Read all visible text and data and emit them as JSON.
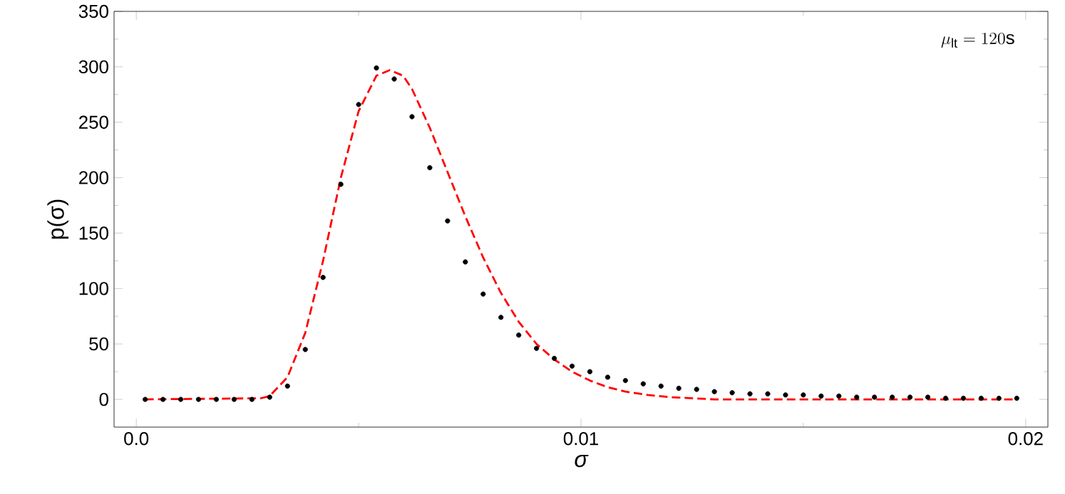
{
  "chart_data": {
    "type": "scatter",
    "xlabel": "σ",
    "ylabel": "p(σ)",
    "annotations": [
      "\\mu_{\\rm lt} = 120{\\rm s}"
    ],
    "xlim": [
      -0.0005,
      0.0205
    ],
    "ylim": [
      -25,
      350
    ],
    "xticks": [
      {
        "value": 0,
        "label": "0.0"
      },
      0.01,
      0.02
    ],
    "yticks": [
      0,
      50,
      100,
      150,
      200,
      250,
      300,
      350
    ],
    "series": [
      {
        "color": "#000000",
        "marker": "circle",
        "x": [
          0.0002,
          0.0006,
          0.001,
          0.0014,
          0.0018,
          0.0022,
          0.0026,
          0.003,
          0.0034,
          0.0038,
          0.0042,
          0.0046,
          0.005,
          0.0054,
          0.0058,
          0.0062,
          0.0066,
          0.007,
          0.0074,
          0.0078,
          0.0082,
          0.0086,
          0.009,
          0.0094,
          0.0098,
          0.0102,
          0.0106,
          0.011,
          0.0114,
          0.0118,
          0.0122,
          0.0126,
          0.013,
          0.0134,
          0.0138,
          0.0142,
          0.0146,
          0.015,
          0.0154,
          0.0158,
          0.0162,
          0.0166,
          0.017,
          0.0174,
          0.0178,
          0.0182,
          0.0186,
          0.019,
          0.0194,
          0.0198
        ],
        "values": [
          0,
          0,
          0,
          0,
          0,
          0,
          0,
          2,
          12,
          45,
          110,
          194,
          266,
          299,
          289,
          255,
          209,
          161,
          124,
          95,
          74,
          58,
          46,
          37,
          30,
          25,
          20,
          17,
          14,
          12,
          10,
          9,
          7,
          6,
          5,
          5,
          4,
          4,
          3,
          3,
          2,
          2,
          2,
          2,
          2,
          1,
          1,
          1,
          1,
          1
        ]
      },
      {
        "type": "line",
        "color": "#ff0000",
        "line_style": "dashed",
        "marker": "none",
        "x": [
          0.0002,
          0.0028,
          0.003,
          0.0034,
          0.0038,
          0.0042,
          0.0046,
          0.005,
          0.0054,
          0.0057,
          0.006,
          0.0062,
          0.0066,
          0.007,
          0.0074,
          0.0078,
          0.0082,
          0.0086,
          0.009,
          0.0094,
          0.0098,
          0.0102,
          0.0106,
          0.011,
          0.0115,
          0.012,
          0.013,
          0.014,
          0.0198
        ],
        "values": [
          0,
          1,
          3,
          20,
          60,
          125,
          200,
          260,
          292,
          297,
          292,
          280,
          245,
          205,
          165,
          128,
          96,
          70,
          50,
          36,
          25,
          17,
          11,
          7,
          4,
          2,
          0,
          0,
          0
        ]
      }
    ]
  }
}
